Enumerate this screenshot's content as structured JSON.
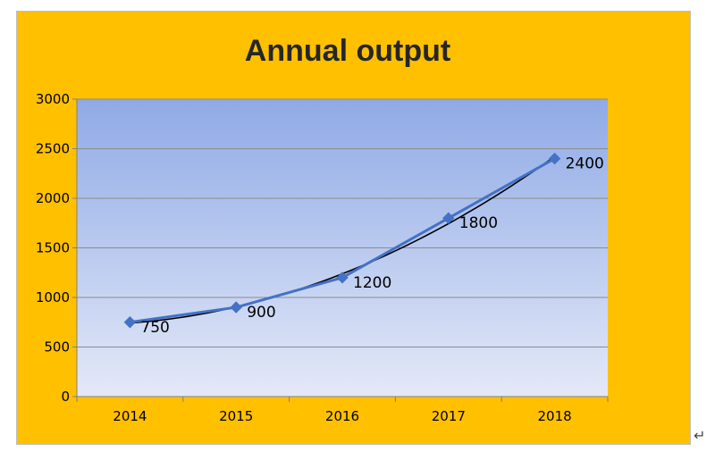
{
  "chart_data": {
    "type": "line",
    "title": "Annual output",
    "categories": [
      "2014",
      "2015",
      "2016",
      "2017",
      "2018"
    ],
    "series": [
      {
        "values": [
          750,
          900,
          1200,
          1800,
          2400
        ],
        "color": "#4472c4",
        "marker": "diamond",
        "data_labels": [
          "750",
          "900",
          "1200",
          "1800",
          "2400"
        ]
      }
    ],
    "trendline": {
      "type": "polynomial",
      "color": "#000000"
    },
    "xlabel": "",
    "ylabel": "",
    "ylim": [
      0,
      3000
    ],
    "yticks": [
      0,
      500,
      1000,
      1500,
      2000,
      2500,
      3000
    ],
    "grid": true,
    "legend": "none",
    "colors": {
      "frame": "#ffc000",
      "plot_top": "#8faae6",
      "plot_bottom": "#e4e9f8",
      "grid": "#8c8c8c"
    }
  }
}
